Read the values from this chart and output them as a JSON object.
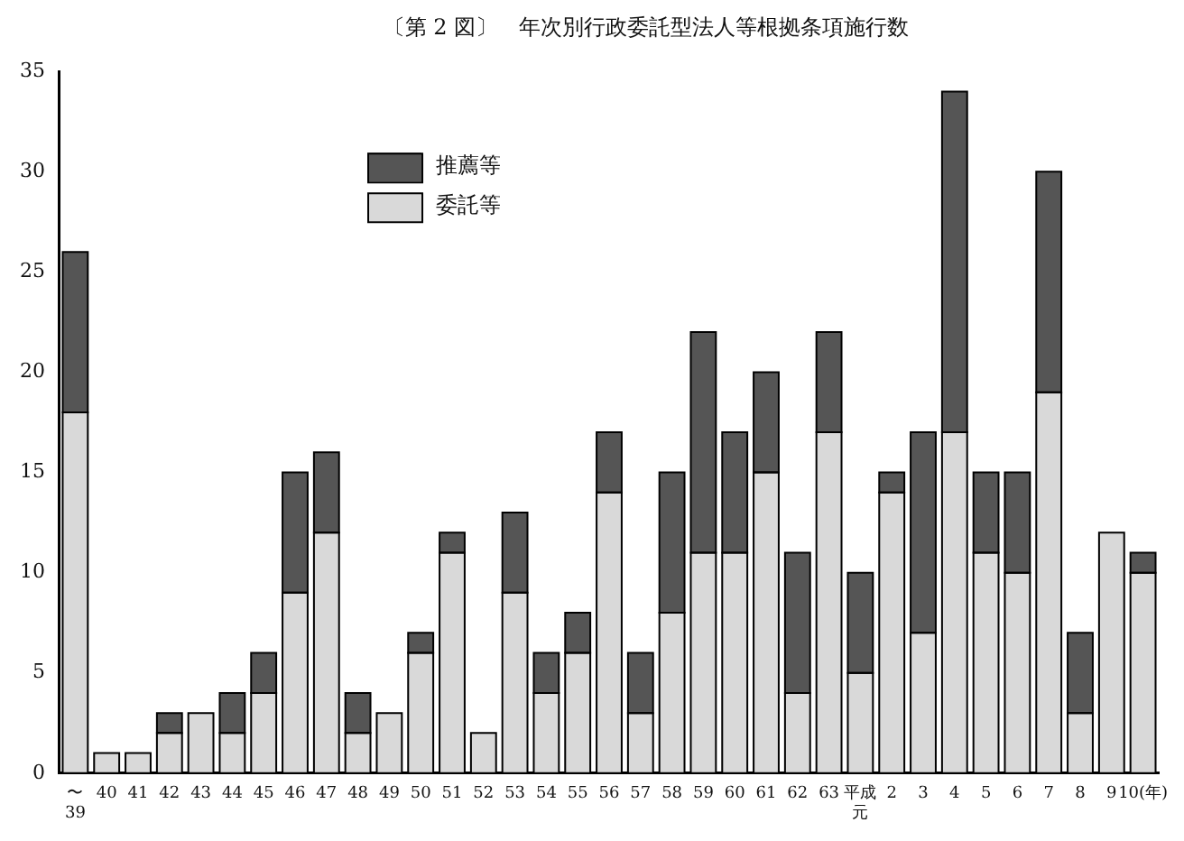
{
  "chart_data": {
    "type": "bar",
    "title": "〔第 2 図〕　年次別行政委託型法人等根拠条項施行数",
    "stacked": true,
    "legend": "top left",
    "grid": false,
    "categories": [
      "〜\n39",
      "40",
      "41",
      "42",
      "43",
      "44",
      "45",
      "46",
      "47",
      "48",
      "49",
      "50",
      "51",
      "52",
      "53",
      "54",
      "55",
      "56",
      "57",
      "58",
      "59",
      "60",
      "61",
      "62",
      "63",
      "平成元",
      "2",
      "3",
      "4",
      "5",
      "6",
      "7",
      "8",
      "9",
      "10(年)"
    ],
    "series": [
      {
        "name": "委託等",
        "color": "#d9d9d9",
        "values": [
          18,
          1,
          1,
          2,
          3,
          2,
          4,
          9,
          12,
          2,
          3,
          6,
          11,
          2,
          9,
          4,
          6,
          14,
          3,
          8,
          11,
          11,
          15,
          4,
          17,
          5,
          14,
          7,
          17,
          11,
          10,
          19,
          3,
          12,
          10
        ]
      },
      {
        "name": "推薦等",
        "color": "#555555",
        "values": [
          8,
          0,
          0,
          1,
          0,
          2,
          2,
          6,
          4,
          2,
          0,
          1,
          1,
          0,
          4,
          2,
          2,
          3,
          3,
          7,
          11,
          6,
          5,
          7,
          5,
          5,
          1,
          10,
          17,
          4,
          5,
          11,
          4,
          0,
          1
        ]
      }
    ],
    "ylim": [
      0,
      35
    ],
    "yticks": [
      0,
      5,
      10,
      15,
      20,
      25,
      30,
      35
    ]
  }
}
